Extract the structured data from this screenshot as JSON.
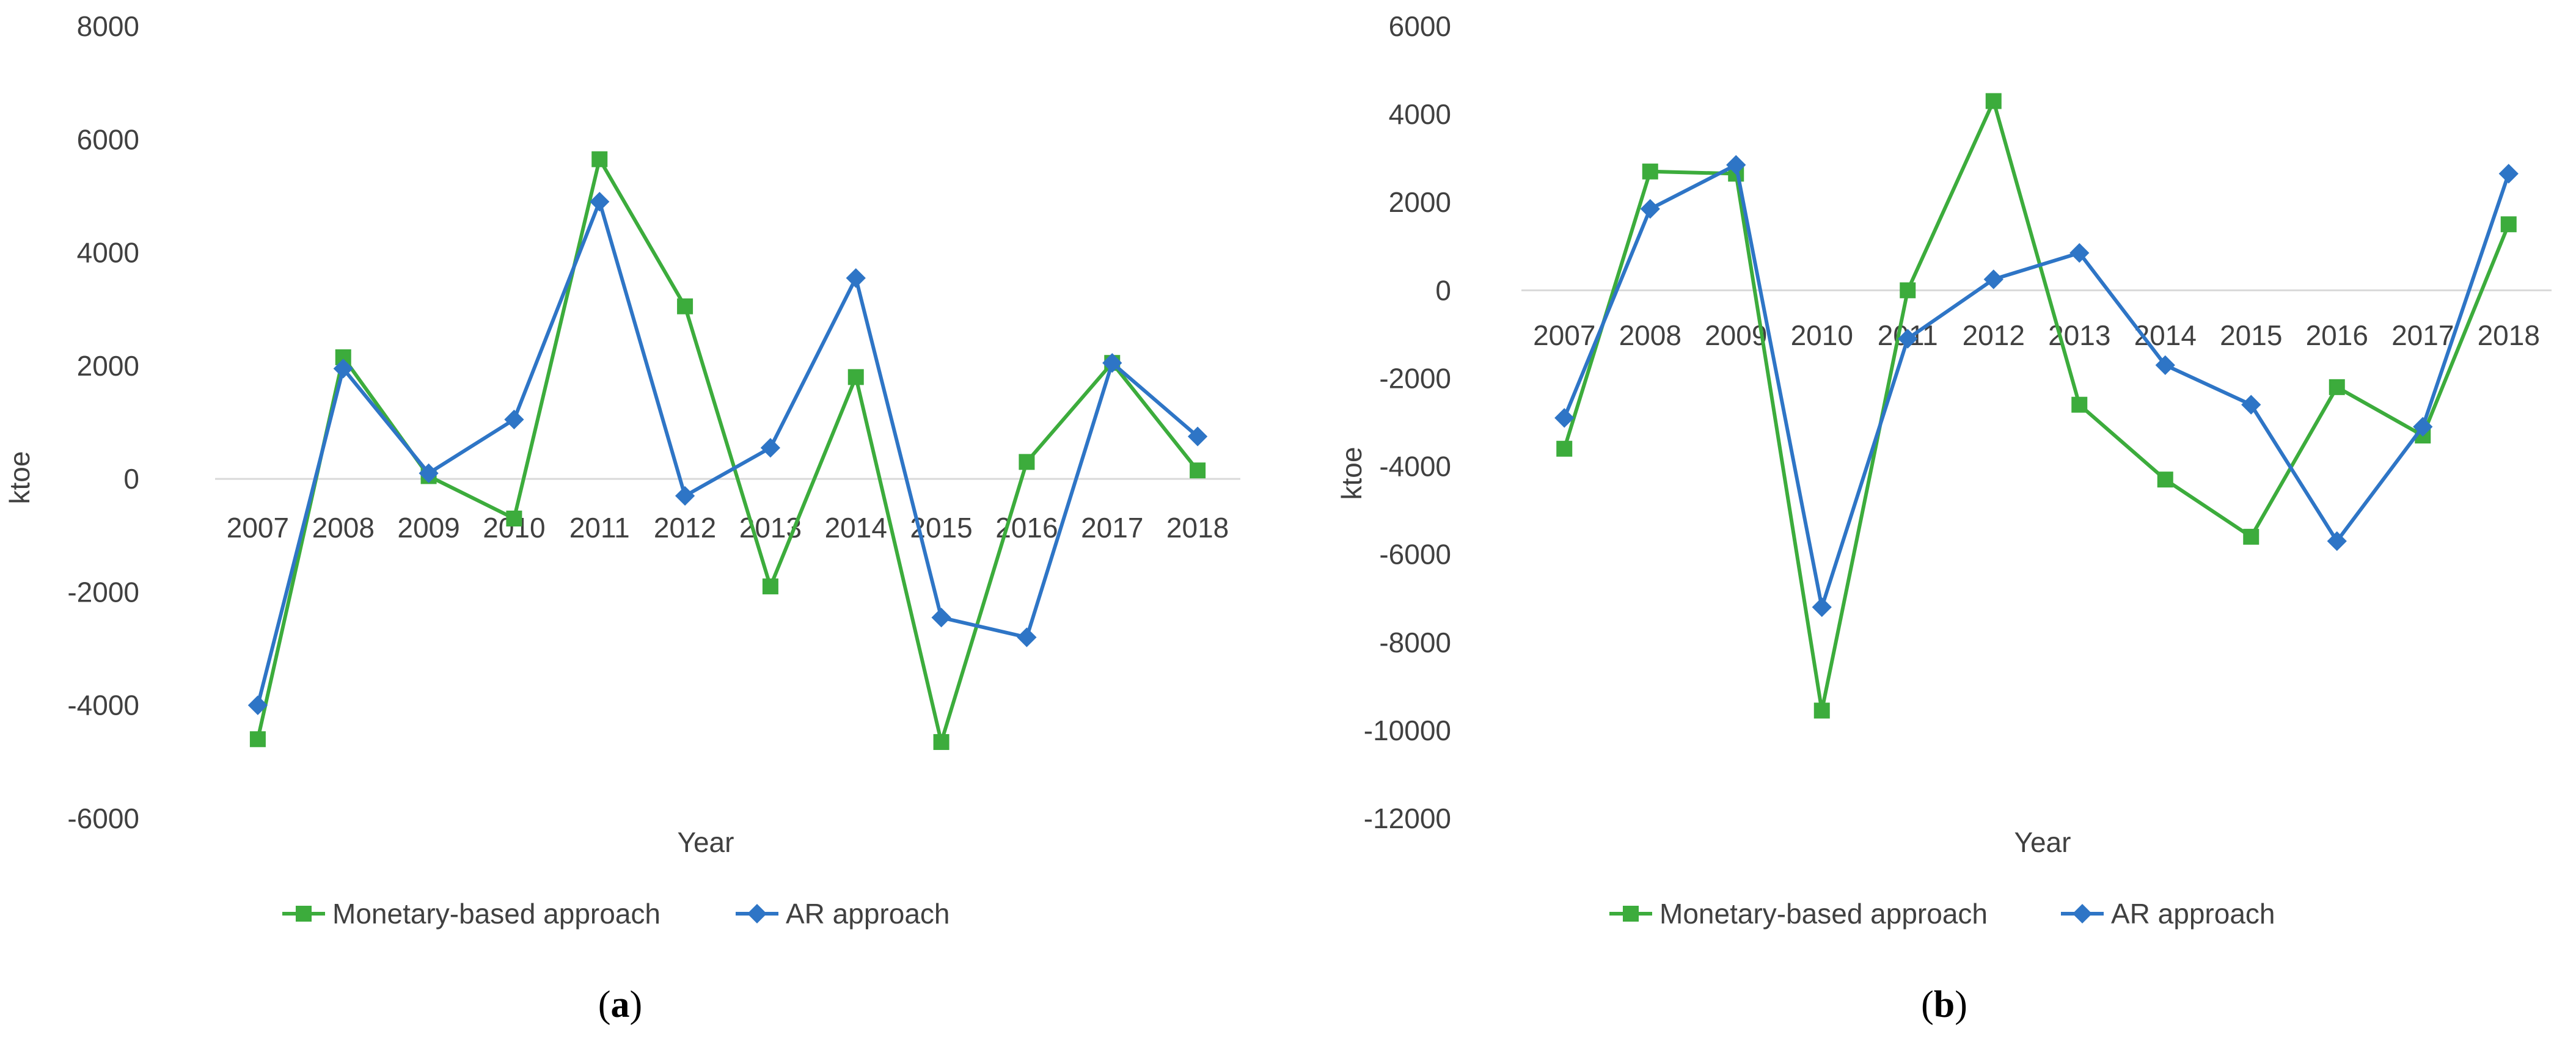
{
  "colors": {
    "monetary": "#3CAC3C",
    "ar": "#2E75C6",
    "axis": "#D9D9D9",
    "text": "#404040"
  },
  "chart_data": [
    {
      "type": "line",
      "panel_label": "a",
      "xlabel": "Year",
      "ylabel": "ktoe",
      "categories": [
        "2007",
        "2008",
        "2009",
        "2010",
        "2011",
        "2012",
        "2013",
        "2014",
        "2015",
        "2016",
        "2017",
        "2018"
      ],
      "yticks": [
        "8000",
        "6000",
        "4000",
        "2000",
        "0",
        "-2000",
        "-4000",
        "-6000"
      ],
      "ylim": [
        -6000,
        8000
      ],
      "grid": false,
      "legend_position": "bottom",
      "series": [
        {
          "name": "Monetary-based approach",
          "marker": "square",
          "values": [
            -4600,
            2150,
            50,
            -700,
            5650,
            3050,
            -1900,
            1800,
            -4650,
            300,
            2050,
            150
          ]
        },
        {
          "name": "AR approach",
          "marker": "diamond",
          "values": [
            -4000,
            1950,
            100,
            1050,
            4900,
            -300,
            550,
            3550,
            -2450,
            -2800,
            2050,
            750
          ]
        }
      ]
    },
    {
      "type": "line",
      "panel_label": "b",
      "xlabel": "Year",
      "ylabel": "ktoe",
      "categories": [
        "2007",
        "2008",
        "2009",
        "2010",
        "2011",
        "2012",
        "2013",
        "2014",
        "2015",
        "2016",
        "2017",
        "2018"
      ],
      "yticks": [
        "6000",
        "4000",
        "2000",
        "0",
        "-2000",
        "-4000",
        "-6000",
        "-8000",
        "-10000",
        "-12000"
      ],
      "ylim": [
        -12000,
        6000
      ],
      "grid": false,
      "legend_position": "bottom",
      "series": [
        {
          "name": "Monetary-based approach",
          "marker": "square",
          "values": [
            -3600,
            2700,
            2650,
            -9550,
            0,
            4300,
            -2600,
            -4300,
            -5600,
            -2200,
            -3300,
            1500
          ]
        },
        {
          "name": "AR approach",
          "marker": "diamond",
          "values": [
            -2900,
            1850,
            2850,
            -7200,
            -1100,
            250,
            850,
            -1700,
            -2600,
            -5700,
            -3100,
            2650
          ]
        }
      ]
    }
  ]
}
